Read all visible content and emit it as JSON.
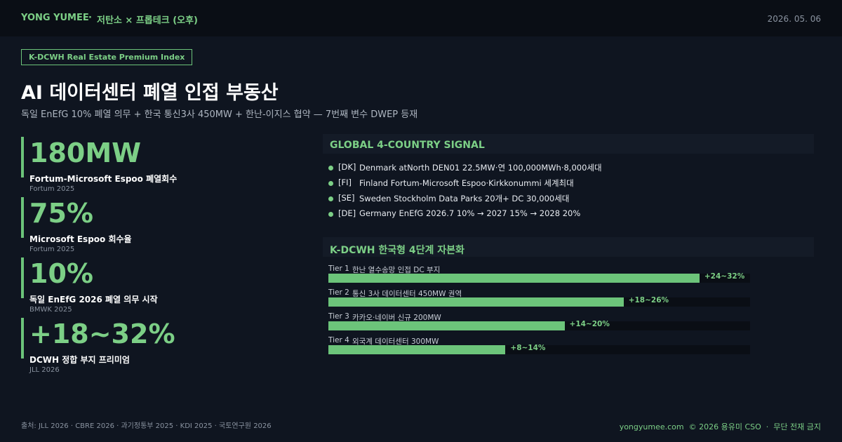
{
  "header": {
    "brand": "YONG YUMEE",
    "separator": "·",
    "section": "저탄소 × 프롭테크 (오후)",
    "date": "2026. 05. 06"
  },
  "badge": "K-DCWH Real Estate Premium Index",
  "title": "AI 데이터센터 폐열 인접 부동산",
  "subtitle": "독일 EnEfG 10% 폐열 의무 + 한국 통신3사 450MW + 한난-이지스 협약 — 7번째 변수 DWEP 등재",
  "kpis": [
    {
      "value": "180MW",
      "label": "Fortum-Microsoft Espoo 폐열회수",
      "source": "Fortum 2025"
    },
    {
      "value": "75%",
      "label": "Microsoft Espoo 회수율",
      "source": "Fortum 2025"
    },
    {
      "value": "10%",
      "label": "독일 EnEfG 2026 폐열 의무 시작",
      "source": "BMWK 2025"
    },
    {
      "value": "+18~32%",
      "label": "DCWH 정합 부지 프리미엄",
      "source": "JLL 2026"
    }
  ],
  "signal": {
    "title": "GLOBAL 4-COUNTRY SIGNAL",
    "items": [
      {
        "code": "[DK]",
        "text": "Denmark atNorth DEN01 22.5MW·연 100,000MWh·8,000세대"
      },
      {
        "code": "[FI]",
        "text": "Finland Fortum-Microsoft Espoo·Kirkkonummi 세계최대"
      },
      {
        "code": "[SE]",
        "text": "Sweden Stockholm Data Parks 20개+ DC 30,000세대"
      },
      {
        "code": "[DE]",
        "text": "Germany EnEfG 2026.7 10% → 2027 15% → 2028 20%"
      }
    ]
  },
  "tiers": {
    "title": "K-DCWH 한국형 4단계 자본화",
    "items": [
      {
        "tier": "Tier 1",
        "name": "한난 열수송망 인접 DC 부지",
        "label": "+24~32%",
        "fill": 88
      },
      {
        "tier": "Tier 2",
        "name": "통신 3사 데이터센터 450MW 권역",
        "label": "+18~26%",
        "fill": 70
      },
      {
        "tier": "Tier 3",
        "name": "카카오·네이버 신규 200MW",
        "label": "+14~20%",
        "fill": 56
      },
      {
        "tier": "Tier 4",
        "name": "외국계 데이터센터 300MW",
        "label": "+8~14%",
        "fill": 42
      }
    ]
  },
  "footer": {
    "sources": "출처: JLL 2026 · CBRE 2026 · 과기정통부 2025 · KDI 2025 · 국토연구원 2026",
    "site": "yongyumee.com",
    "copyright": "© 2026 용유미 CSO",
    "separator": "·",
    "notice": "무단 전재 금지"
  }
}
